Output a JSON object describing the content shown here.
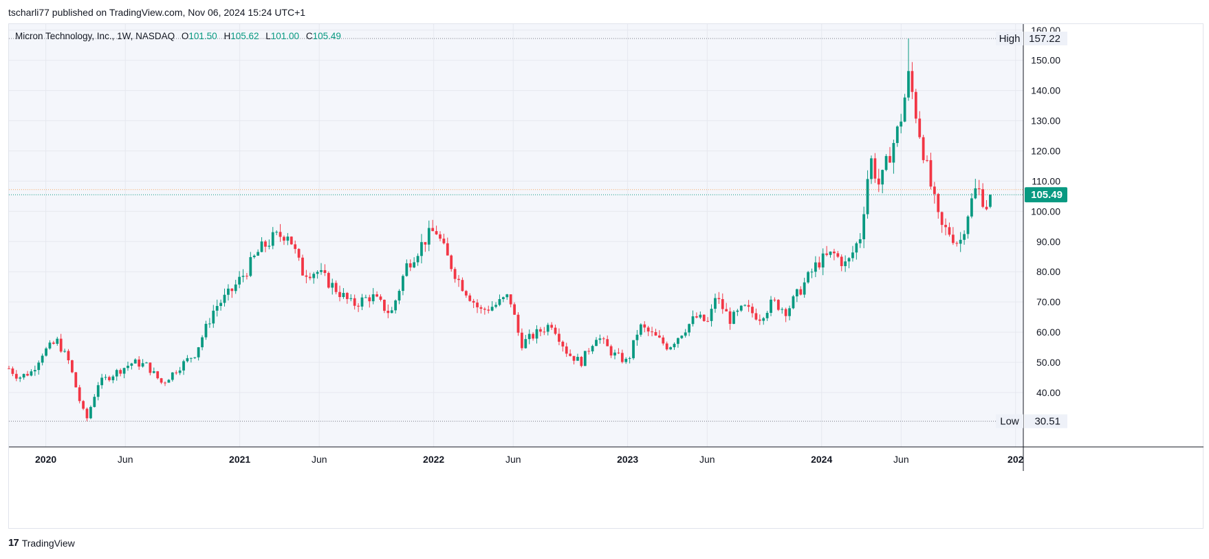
{
  "caption": "tscharli77 published on TradingView.com, Nov 06, 2024 15:24 UTC+1",
  "brand": {
    "logo": "17",
    "name": "TradingView",
    "icon": "tradingview-logo-icon"
  },
  "legend": {
    "symbol": "Micron Technology, Inc., 1W, NASDAQ",
    "o_label": "O",
    "o": "101.50",
    "h_label": "H",
    "h": "105.62",
    "l_label": "L",
    "l": "101.00",
    "c_label": "C",
    "c": "105.49"
  },
  "colors": {
    "up": "#089981",
    "down": "#f23645",
    "grid": "#e6e8ef",
    "bg": "#f4f6fb",
    "text": "#131722",
    "axis": "#131722"
  },
  "chart_data": {
    "type": "candlestick",
    "interval": "1W",
    "ylim": [
      22,
      162
    ],
    "y_ticks": [
      "40.00",
      "50.00",
      "60.00",
      "70.00",
      "80.00",
      "90.00",
      "100.00",
      "110.00",
      "120.00",
      "130.00",
      "140.00",
      "150.00",
      "160.00"
    ],
    "x_ticks": [
      {
        "label": "2020",
        "year": 2020.0,
        "bold": true
      },
      {
        "label": "Jun",
        "year": 2020.41,
        "bold": false
      },
      {
        "label": "2021",
        "year": 2021.0,
        "bold": true
      },
      {
        "label": "Jun",
        "year": 2021.41,
        "bold": false
      },
      {
        "label": "2022",
        "year": 2022.0,
        "bold": true
      },
      {
        "label": "Jun",
        "year": 2022.41,
        "bold": false
      },
      {
        "label": "2023",
        "year": 2023.0,
        "bold": true
      },
      {
        "label": "Jun",
        "year": 2023.41,
        "bold": false
      },
      {
        "label": "2024",
        "year": 2024.0,
        "bold": true
      },
      {
        "label": "Jun",
        "year": 2024.41,
        "bold": false
      },
      {
        "label": "202",
        "year": 2025.0,
        "bold": true
      }
    ],
    "xlim": [
      2019.81,
      2025.04
    ],
    "high": {
      "label": "High",
      "value": 157.22
    },
    "low": {
      "label": "Low",
      "value": 30.51
    },
    "last": {
      "value": 105.49,
      "label": "105.49"
    },
    "prev_close": 107.2,
    "keypoints": [
      [
        2019.81,
        48
      ],
      [
        2019.86,
        45
      ],
      [
        2019.93,
        47
      ],
      [
        2019.98,
        53
      ],
      [
        2020.06,
        57
      ],
      [
        2020.12,
        50
      ],
      [
        2020.18,
        36
      ],
      [
        2020.21,
        31
      ],
      [
        2020.27,
        43
      ],
      [
        2020.37,
        47
      ],
      [
        2020.45,
        50
      ],
      [
        2020.52,
        49
      ],
      [
        2020.6,
        43
      ],
      [
        2020.68,
        48
      ],
      [
        2020.77,
        53
      ],
      [
        2020.87,
        68
      ],
      [
        2020.95,
        73
      ],
      [
        2021.03,
        80
      ],
      [
        2021.1,
        87
      ],
      [
        2021.17,
        91
      ],
      [
        2021.25,
        93
      ],
      [
        2021.32,
        80
      ],
      [
        2021.4,
        80
      ],
      [
        2021.5,
        74
      ],
      [
        2021.58,
        69
      ],
      [
        2021.68,
        72
      ],
      [
        2021.78,
        66
      ],
      [
        2021.86,
        82
      ],
      [
        2021.96,
        91
      ],
      [
        2022.01,
        94
      ],
      [
        2022.06,
        86
      ],
      [
        2022.13,
        77
      ],
      [
        2022.24,
        67
      ],
      [
        2022.32,
        69
      ],
      [
        2022.39,
        72
      ],
      [
        2022.45,
        56
      ],
      [
        2022.54,
        60
      ],
      [
        2022.61,
        63
      ],
      [
        2022.69,
        53
      ],
      [
        2022.76,
        50
      ],
      [
        2022.84,
        59
      ],
      [
        2022.92,
        53
      ],
      [
        2023.0,
        50
      ],
      [
        2023.06,
        62
      ],
      [
        2023.13,
        59
      ],
      [
        2023.21,
        55
      ],
      [
        2023.28,
        60
      ],
      [
        2023.35,
        65
      ],
      [
        2023.42,
        63
      ],
      [
        2023.45,
        72
      ],
      [
        2023.53,
        64
      ],
      [
        2023.6,
        68
      ],
      [
        2023.68,
        65
      ],
      [
        2023.75,
        70
      ],
      [
        2023.82,
        67
      ],
      [
        2023.9,
        75
      ],
      [
        2023.98,
        83
      ],
      [
        2024.06,
        86
      ],
      [
        2024.13,
        82
      ],
      [
        2024.2,
        92
      ],
      [
        2024.25,
        118
      ],
      [
        2024.3,
        108
      ],
      [
        2024.35,
        119
      ],
      [
        2024.4,
        128
      ],
      [
        2024.45,
        145
      ],
      [
        2024.5,
        128
      ],
      [
        2024.55,
        112
      ],
      [
        2024.61,
        95
      ],
      [
        2024.66,
        93
      ],
      [
        2024.71,
        89
      ],
      [
        2024.76,
        101
      ],
      [
        2024.8,
        108
      ],
      [
        2024.85,
        102
      ],
      [
        2024.87,
        105.49
      ]
    ]
  }
}
